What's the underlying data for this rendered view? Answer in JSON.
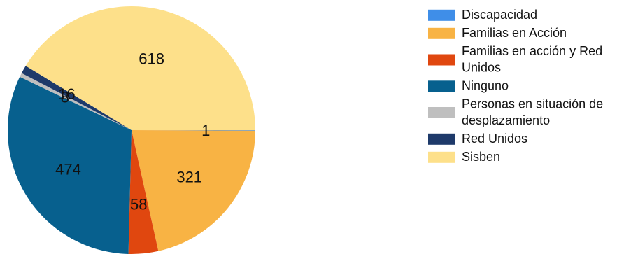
{
  "chart_data": {
    "type": "pie",
    "slices": [
      {
        "label": "Discapacidad",
        "value": 1,
        "color": "#3f8ee8"
      },
      {
        "label": "Familias en Acción",
        "value": 321,
        "color": "#f8b344"
      },
      {
        "label": "Familias en acción y Red Unidos",
        "value": 58,
        "color": "#e0470f"
      },
      {
        "label": "Ninguno",
        "value": 474,
        "color": "#07608e"
      },
      {
        "label": "Personas en situación de desplazamiento",
        "value": 8,
        "color": "#bfbfbf"
      },
      {
        "label": "Red Unidos",
        "value": 16,
        "color": "#1e3a6a"
      },
      {
        "label": "Sisben",
        "value": 618,
        "color": "#fde08a"
      }
    ],
    "legend_position": "right",
    "legend": [
      {
        "lines": [
          "Discapacidad"
        ]
      },
      {
        "lines": [
          "Familias en Acción"
        ]
      },
      {
        "lines": [
          "Familias en acción y Red",
          "Unidos"
        ]
      },
      {
        "lines": [
          "Ninguno"
        ]
      },
      {
        "lines": [
          "Personas en situación de",
          "desplazamiento"
        ]
      },
      {
        "lines": [
          "Red Unidos"
        ]
      },
      {
        "lines": [
          "Sisben"
        ]
      }
    ]
  }
}
